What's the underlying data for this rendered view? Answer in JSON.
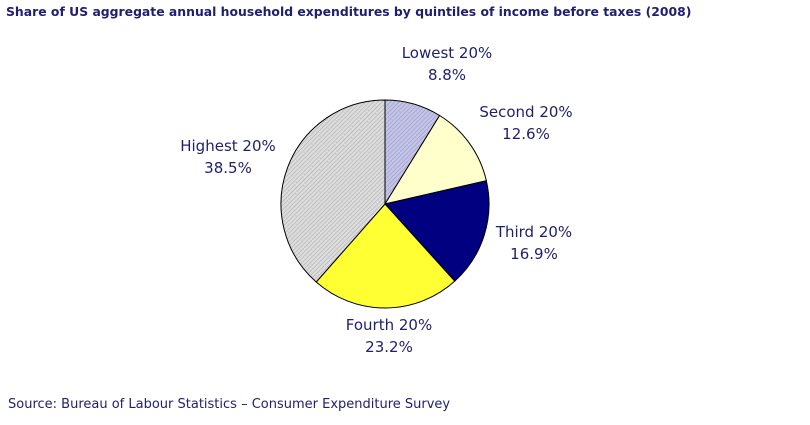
{
  "chart_data": {
    "type": "pie",
    "title": "Share of US aggregate annual household expenditures by quintiles of income before taxes (2008)",
    "slices": [
      {
        "label": "Lowest 20%",
        "value": 8.8,
        "value_label": "8.8%",
        "color": "#b6b6dc"
      },
      {
        "label": "Second 20%",
        "value": 12.6,
        "value_label": "12.6%",
        "color": "#ffffcc"
      },
      {
        "label": "Third 20%",
        "value": 16.9,
        "value_label": "16.9%",
        "color": "#000080"
      },
      {
        "label": "Fourth 20%",
        "value": 23.2,
        "value_label": "23.2%",
        "color": "#ffff33"
      },
      {
        "label": "Highest 20%",
        "value": 38.5,
        "value_label": "38.5%",
        "color": "#dcdcdc"
      }
    ]
  },
  "footer": {
    "source": "Source: Bureau of Labour Statistics – Consumer Expenditure Survey"
  }
}
